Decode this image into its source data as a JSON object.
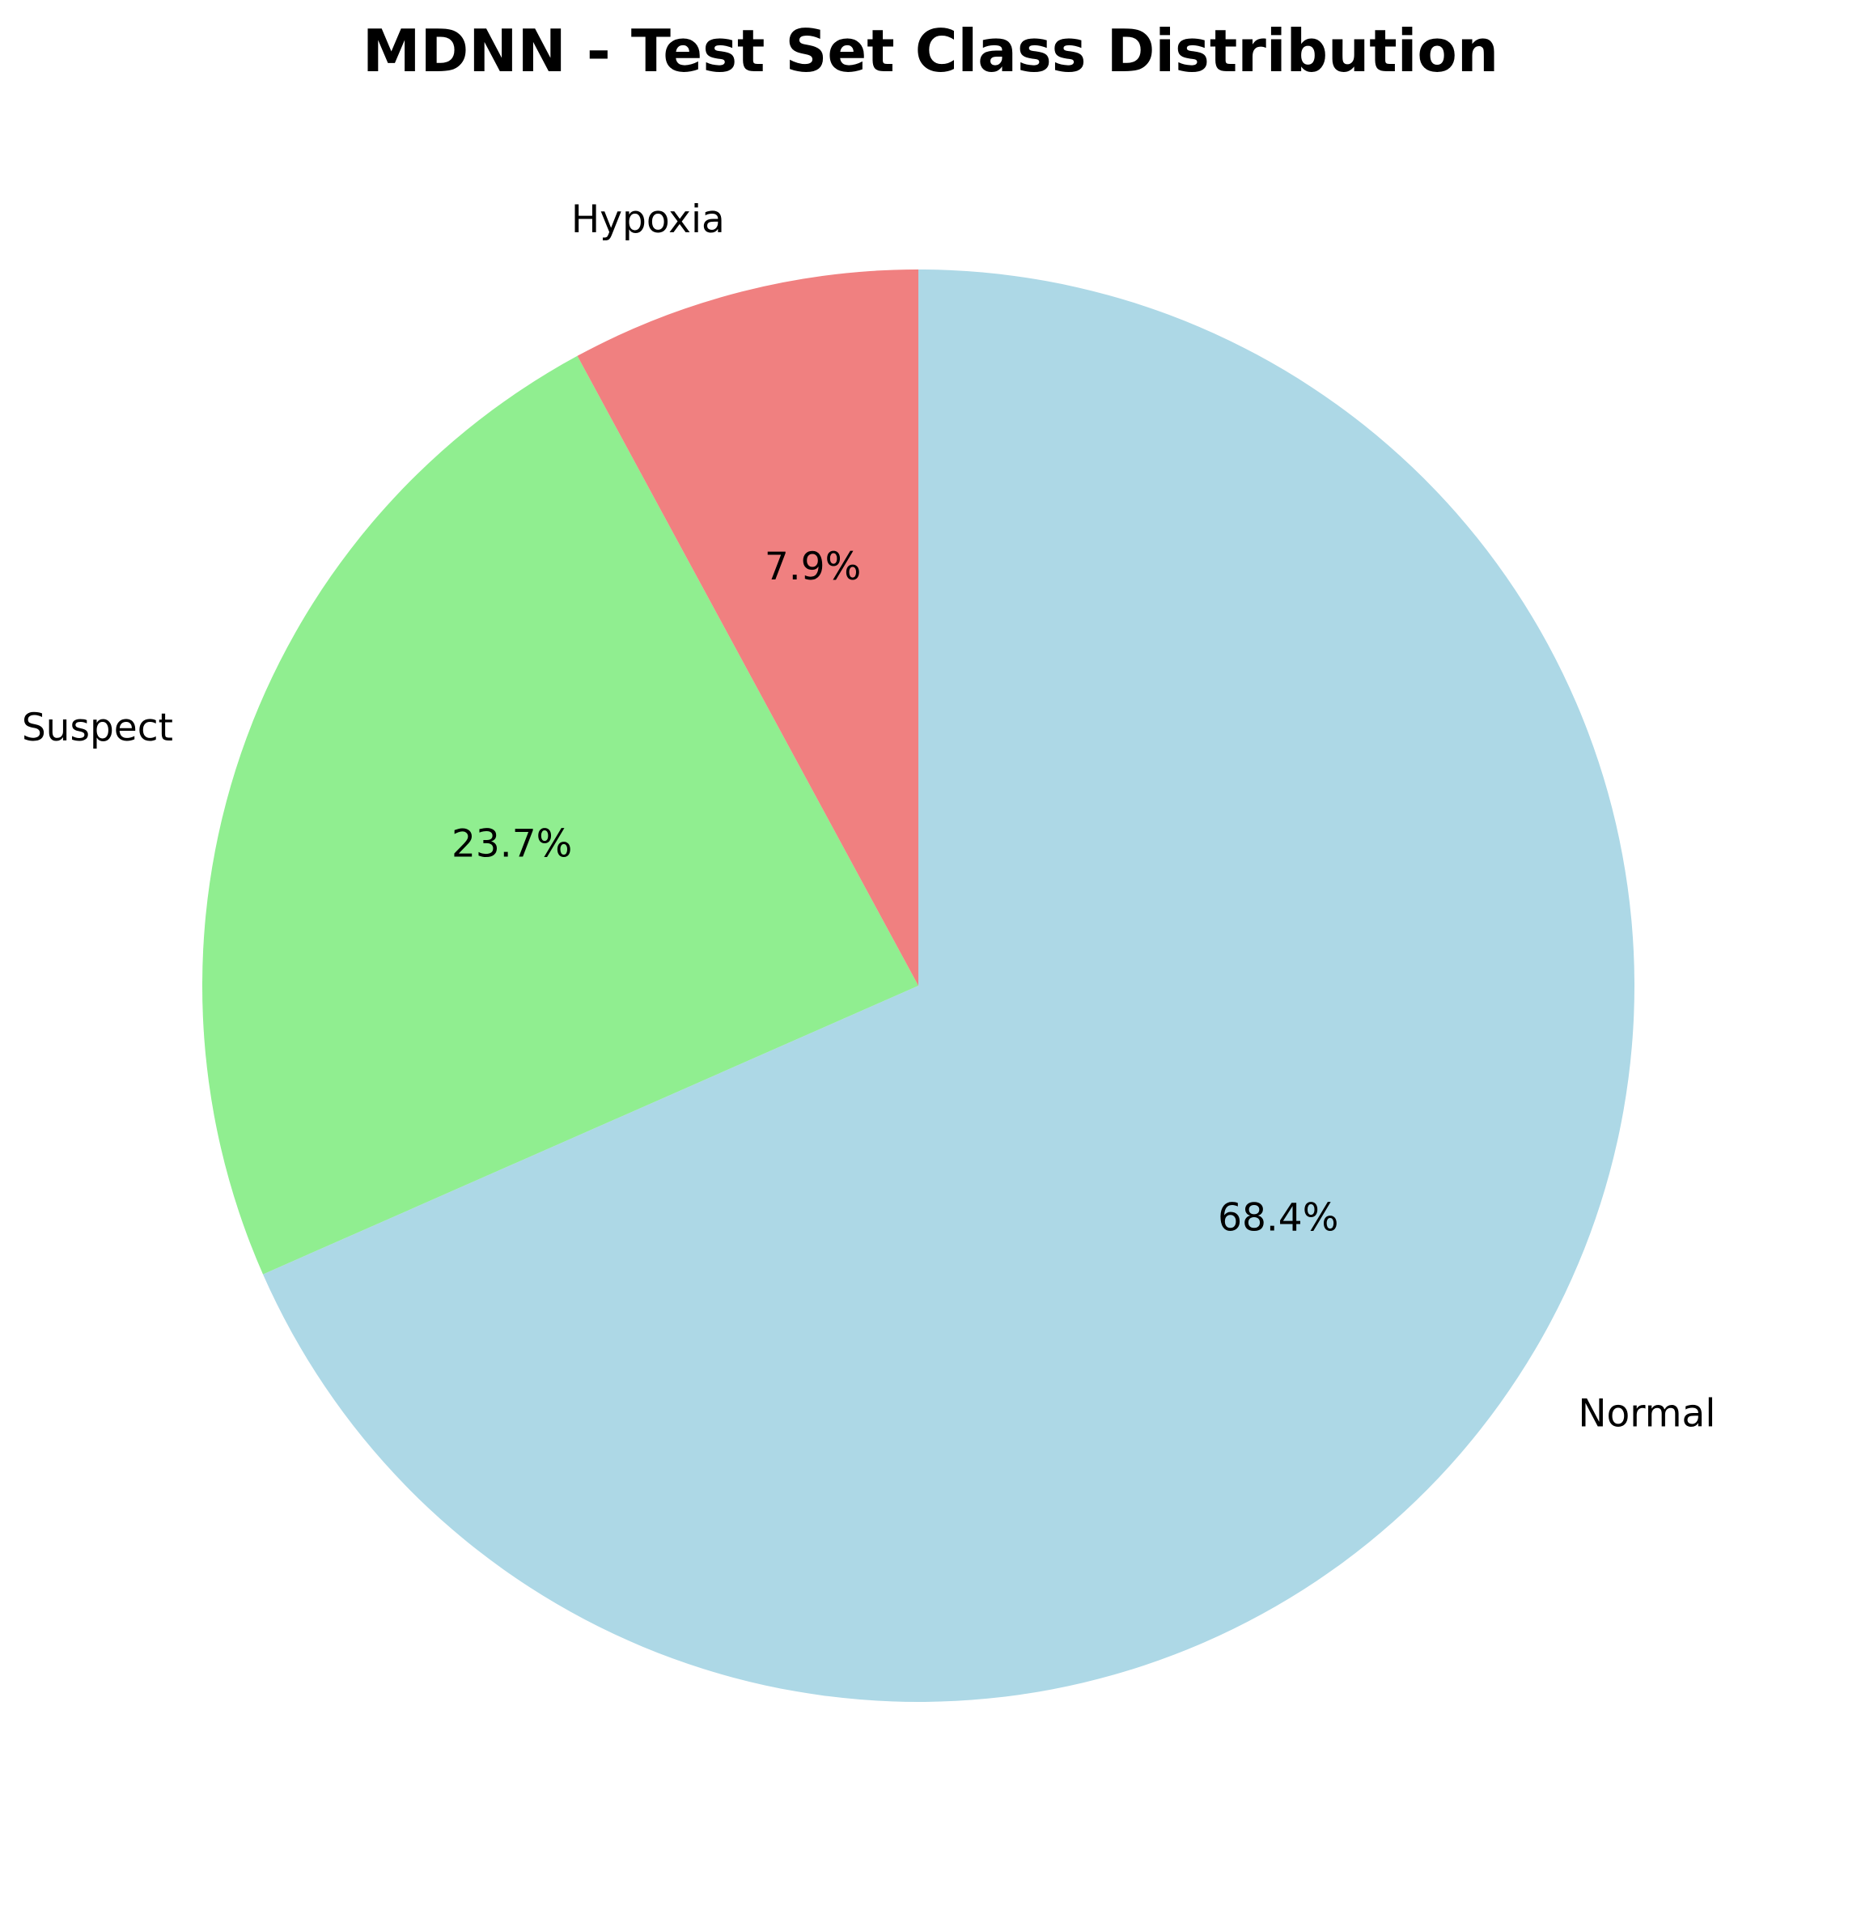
{
  "chart_data": {
    "type": "pie",
    "title": "MDNN - Test Set Class Distribution",
    "start_angle_deg": 90,
    "direction": "clockwise",
    "legend": "none",
    "slices": [
      {
        "label": "Normal",
        "value": 68.4,
        "pct_label": "68.4%",
        "color": "#add8e6"
      },
      {
        "label": "Suspect",
        "value": 23.7,
        "pct_label": "23.7%",
        "color": "#90ee90"
      },
      {
        "label": "Hypoxia",
        "value": 7.9,
        "pct_label": "7.9%",
        "color": "#f08080"
      }
    ]
  }
}
